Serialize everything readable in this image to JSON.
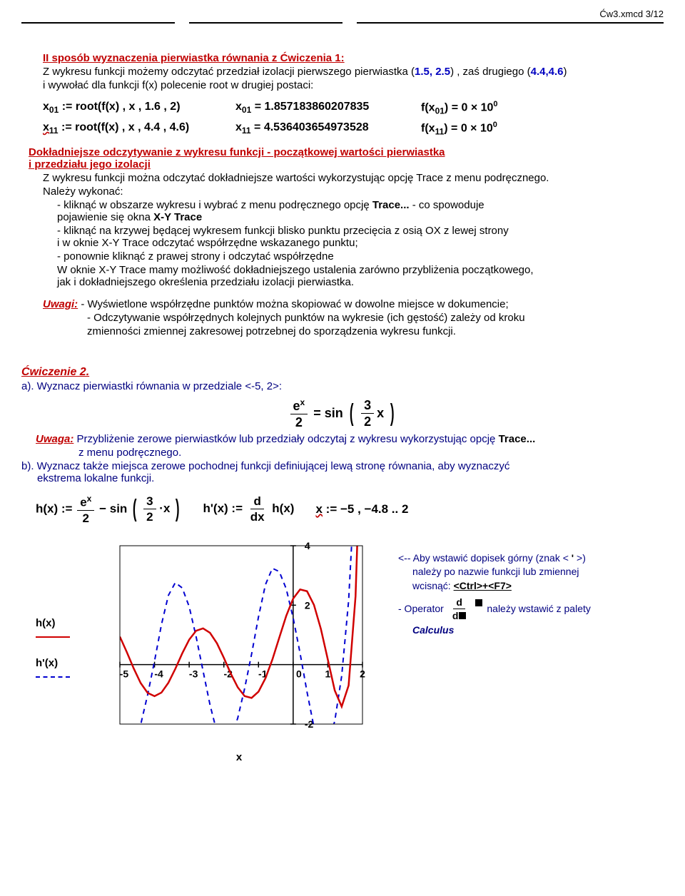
{
  "header": {
    "filepage": "Ćw3.xmcd  3/12"
  },
  "s2": {
    "title": "II sposób wyznaczenia pierwiastka równania z Ćwiczenia 1:",
    "note_prefix": "Z wykresu funkcji możemy odczytać przedział izolacji pierwszego pierwiastka  (",
    "root1_range": "1.5, 2.5",
    "note_mid": ") , zaś drugiego (",
    "root2_range": "4.4,4.6",
    "note_suffix": ")",
    "l2": "i wywołać dla funkcji f(x) polecenie root w drugiej postaci:",
    "row1": {
      "a": "x",
      "a_sub": "01",
      "a_rest": " := root(f(x) , x , 1.6 , 2)",
      "b": "x",
      "b_sub": "01",
      "b_rest": " = 1.857183860207835",
      "c": "f(x",
      "c_sub": "01",
      "c_mid": ") = 0 × 10",
      "c_sup": "0"
    },
    "row2": {
      "a": "x",
      "a_sub": "11",
      "a_rest": " := root(f(x) , x , 4.4 , 4.6)",
      "b": "x",
      "b_sub": "11",
      "b_rest": " = 4.536403654973528",
      "c": "f(x",
      "c_sub": "11",
      "c_mid": ") = 0 × 10",
      "c_sup": "0"
    }
  },
  "s3": {
    "h_line1": "Dokładniejsze odczytywanie z wykresu funkcji - początkowej wartości pierwiastka",
    "h_line2": "i przedziału jego izolacji",
    "p1": "Z wykresu funkcji można odczytać dokładniejsze wartości wykorzystując opcję Trace z menu podręcznego.",
    "p2": "Należy wykonać:",
    "b1a": "- kliknąć w obszarze wykresu i wybrać z menu podręcznego opcję ",
    "b1_trace": "Trace...",
    "b1b": "  - co spowoduje",
    "b1c": "  pojawienie się okna  ",
    "b1_xy": "X-Y Trace",
    "b2a": "- kliknąć na krzywej będącej wykresem funkcji blisko punktu przecięcia z osią OX z lewej strony",
    "b2b": "  i w oknie X-Y Trace odczytać współrzędne wskazanego punktu;",
    "b3": "- ponownie kliknąć z prawej strony i odczytać współrzędne",
    "b4a": "W oknie X-Y Trace mamy możliwość dokładniejszego ustalenia zarówno przybliżenia początkowego,",
    "b4b": "jak i dokładniejszego określenia przedziału izolacji pierwiastka.",
    "uwagi": "Uwagi:",
    "u1": " - Wyświetlone współrzędne punktów można skopiować w dowolne miejsce w dokumencie;",
    "u2": "- Odczytywanie współrzędnych kolejnych punktów na wykresie (ich gęstość) zależy od kroku",
    "u3": "  zmienności zmiennej zakresowej potrzebnej do sporządzenia wykresu funkcji."
  },
  "ex2": {
    "title": "Ćwiczenie  2.",
    "a": "a). Wyznacz pierwiastki  równania w przedziale  <-5, 2>:",
    "uwaga": "Uwaga:",
    "uw_a": " Przybliżenie zerowe pierwiastków lub przedziały odczytaj z wykresu wykorzystując opcję ",
    "uw_trace": "Trace...",
    "uw_b": "z menu podręcznego.",
    "b1": "b). Wyznacz także miejsca zerowe pochodnej funkcji definiującej lewą stronę równania, aby wyznaczyć",
    "b2": "ekstrema lokalne funkcji.",
    "h_def": "h(x) := ",
    "hp_def": "h'(x) := ",
    "x_def_a": "x",
    "x_def_b": " := −5 , −4.8 .. 2"
  },
  "annot": {
    "l1a": "<-- Aby wstawić dopisek górny (znak < ",
    "l1b": "'",
    "l1c": " >)",
    "l2": "należy po nazwie funkcji lub zmiennej",
    "l3a": "wcisnąć:  ",
    "l3b": "<Ctrl>+<F7>",
    "l4": "- Operator",
    "l5": "należy wstawić z palety",
    "l6": "Calculus"
  },
  "chart": {
    "legend_h": "h(x)",
    "legend_hp": "h'(x)",
    "x_label": "x",
    "line_h_color": "#d00000",
    "line_hp_color": "#0000d0",
    "axis_color": "#000000",
    "bg_color": "#ffffff",
    "xlim": [
      -5,
      2
    ],
    "ylim": [
      -2,
      4
    ],
    "xticks": [
      -5,
      -4,
      -3,
      -2,
      -1,
      0,
      1,
      2
    ],
    "yticks": [
      -2,
      0,
      2,
      4
    ],
    "h_points": [
      [
        -5,
        0.94
      ],
      [
        -4.8,
        0.42
      ],
      [
        -4.6,
        -0.13
      ],
      [
        -4.4,
        -0.62
      ],
      [
        -4.2,
        -0.95
      ],
      [
        -4,
        -1.06
      ],
      [
        -3.8,
        -0.94
      ],
      [
        -3.6,
        -0.61
      ],
      [
        -3.4,
        -0.14
      ],
      [
        -3.2,
        0.38
      ],
      [
        -3,
        0.84
      ],
      [
        -2.8,
        1.14
      ],
      [
        -2.6,
        1.22
      ],
      [
        -2.4,
        1.07
      ],
      [
        -2.2,
        0.72
      ],
      [
        -2,
        0.23
      ],
      [
        -1.8,
        -0.3
      ],
      [
        -1.6,
        -0.76
      ],
      [
        -1.4,
        -1.06
      ],
      [
        -1.2,
        -1.12
      ],
      [
        -1,
        -0.91
      ],
      [
        -0.8,
        -0.46
      ],
      [
        -0.6,
        0.17
      ],
      [
        -0.4,
        0.91
      ],
      [
        -0.2,
        1.64
      ],
      [
        0,
        2.22
      ],
      [
        0.2,
        2.53
      ],
      [
        0.4,
        2.47
      ],
      [
        0.6,
        2.01
      ],
      [
        0.8,
        1.2
      ],
      [
        1,
        0.17
      ],
      [
        1.2,
        -0.87
      ],
      [
        1.4,
        -1.41
      ],
      [
        1.6,
        -0.7
      ],
      [
        1.8,
        2.3
      ],
      [
        2,
        9.5
      ]
    ],
    "hp_points": [
      [
        -5,
        -2.58
      ],
      [
        -4.8,
        -2.74
      ],
      [
        -4.6,
        -2.61
      ],
      [
        -4.4,
        -2.02
      ],
      [
        -4.2,
        -1.02
      ],
      [
        -4,
        0.12
      ],
      [
        -3.8,
        1.35
      ],
      [
        -3.6,
        2.33
      ],
      [
        -3.4,
        2.76
      ],
      [
        -3.2,
        2.58
      ],
      [
        -3,
        1.95
      ],
      [
        -2.8,
        0.94
      ],
      [
        -2.6,
        -0.21
      ],
      [
        -2.4,
        -1.35
      ],
      [
        -2.2,
        -2.27
      ],
      [
        -2,
        -2.66
      ],
      [
        -1.8,
        -2.45
      ],
      [
        -1.6,
        -1.8
      ],
      [
        -1.4,
        -0.8
      ],
      [
        -1.2,
        0.35
      ],
      [
        -1,
        1.61
      ],
      [
        -0.8,
        2.69
      ],
      [
        -0.6,
        3.24
      ],
      [
        -0.4,
        3.13
      ],
      [
        -0.2,
        2.55
      ],
      [
        0,
        1.57
      ],
      [
        0.2,
        0.38
      ],
      [
        0.4,
        -0.92
      ],
      [
        0.6,
        -2.1
      ],
      [
        0.8,
        -2.78
      ],
      [
        1,
        -2.68
      ],
      [
        1.2,
        -1.9
      ],
      [
        1.4,
        -0.38
      ],
      [
        1.6,
        2.15
      ],
      [
        1.8,
        6.5
      ],
      [
        2,
        14
      ]
    ]
  }
}
